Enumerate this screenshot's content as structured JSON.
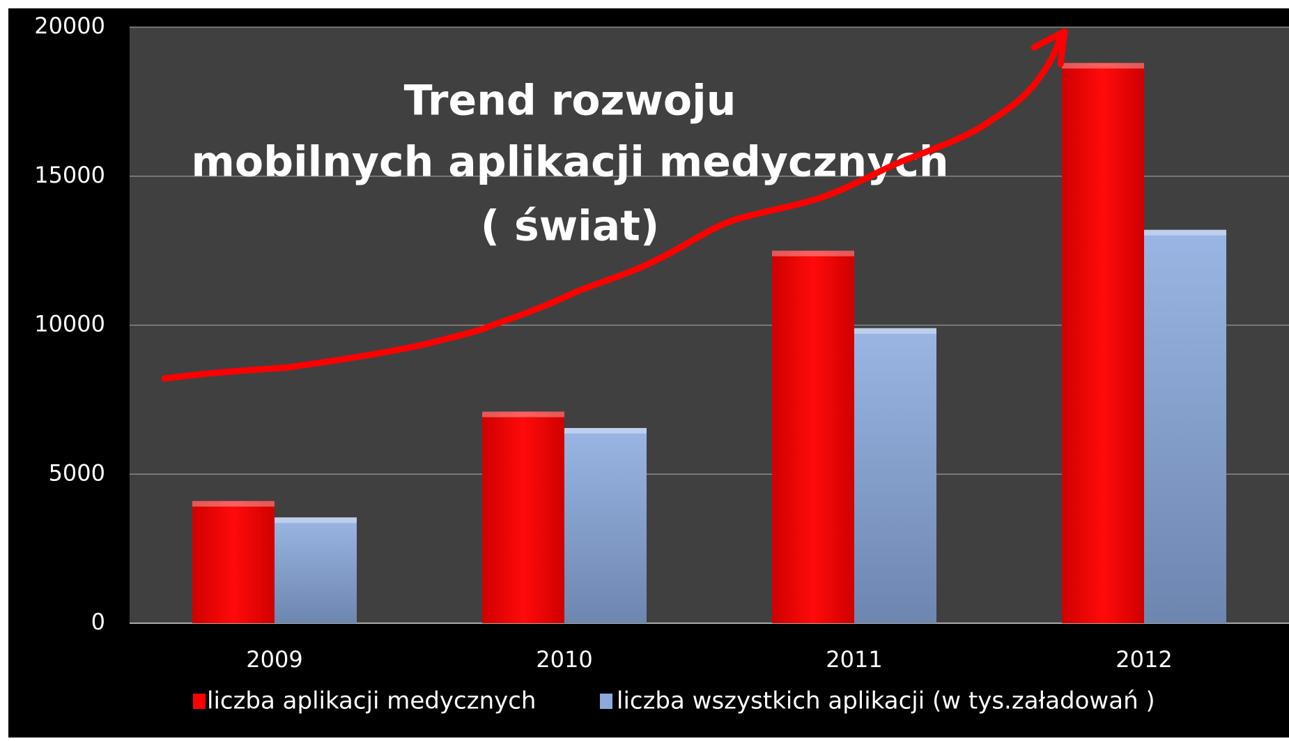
{
  "chart_data": {
    "type": "bar",
    "title": [
      "Trend rozwoju",
      "mobilnych aplikacji medycznych",
      "( świat)"
    ],
    "categories": [
      "2009",
      "2010",
      "2011",
      "2012"
    ],
    "series": [
      {
        "name": "liczba aplikacji medycznych",
        "color": "#ff0000",
        "values": [
          4100,
          7100,
          12500,
          18800
        ]
      },
      {
        "name": "liczba wszystkich aplikacji (w tys.załadowań )",
        "color": "#8eaadb",
        "values": [
          3550,
          6550,
          9900,
          13200
        ]
      }
    ],
    "ylim": [
      0,
      20000
    ],
    "yticks": [
      0,
      5000,
      10000,
      15000,
      20000
    ],
    "grid": true,
    "legend": "bottom"
  }
}
